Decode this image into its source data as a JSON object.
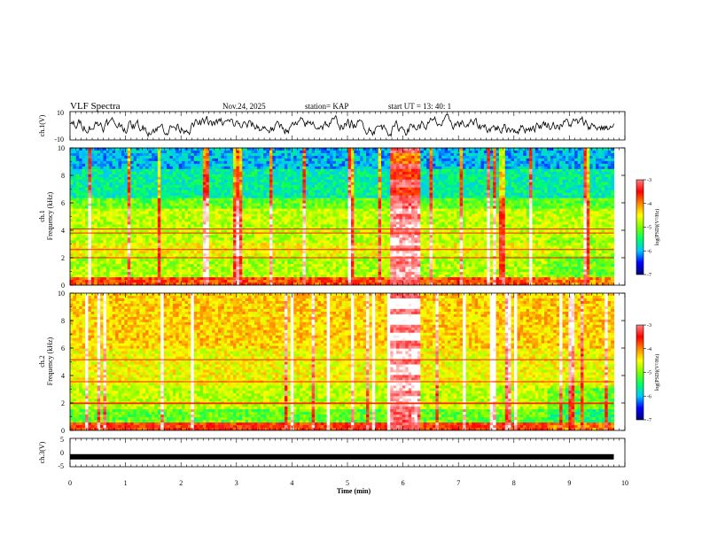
{
  "header": {
    "title": "VLF Spectra",
    "date": "Nov.24, 2025",
    "station": "station= KAP",
    "start": "start  UT  =   13: 40: 1"
  },
  "colors": {
    "spectrum_stops": [
      "#00007a",
      "#0000ff",
      "#00c8ff",
      "#00ff66",
      "#7cff00",
      "#ffff00",
      "#ff8800",
      "#ff0000",
      "#ff8080",
      "#ffffff"
    ],
    "trace": "#000000"
  },
  "chart_data": [
    {
      "type": "line",
      "id": "ch1-waveform",
      "ylabel": "ch.1(V)",
      "ylim": [
        -10,
        10
      ],
      "yticks": [
        "10",
        "-10"
      ],
      "xlim": [
        0,
        10
      ],
      "description_values": {
        "mean": 0,
        "amplitude": 4
      }
    },
    {
      "type": "heatmap",
      "id": "ch1-spectrogram",
      "ylabel_top": "ch.1",
      "ylabel": "Frequency (kHz)",
      "ylim": [
        0,
        10
      ],
      "yticks": [
        "0",
        "2",
        "4",
        "6",
        "8",
        "10"
      ],
      "xlim": [
        0,
        10
      ],
      "data_end_min": 9.8,
      "burst_interval_min": [
        5.75,
        6.3
      ],
      "colorbar": {
        "label": "log(PSD)(V²/Hz)",
        "range": [
          -7,
          -3
        ],
        "ticks": [
          "-3",
          "-4",
          "-5",
          "-6",
          "-7"
        ]
      }
    },
    {
      "type": "heatmap",
      "id": "ch2-spectrogram",
      "ylabel_top": "ch.2",
      "ylabel": "Frequency (kHz)",
      "ylim": [
        0,
        10
      ],
      "yticks": [
        "0",
        "2",
        "4",
        "6",
        "8",
        "10"
      ],
      "xlim": [
        0,
        10
      ],
      "data_end_min": 9.8,
      "burst_interval_min": [
        5.75,
        6.3
      ],
      "colorbar": {
        "label": "log(PSD)(V²/Hz)",
        "range": [
          -7,
          -3
        ],
        "ticks": [
          "-3",
          "-4",
          "-5",
          "-6",
          "-7"
        ]
      }
    },
    {
      "type": "line",
      "id": "ch3-waveform",
      "ylabel": "ch.3(V)",
      "ylim": [
        -5,
        5
      ],
      "yticks": [
        "5",
        "0",
        "-5"
      ],
      "xlim": [
        0,
        10
      ],
      "level": -1.5
    }
  ],
  "xaxis": {
    "label": "Time (min)",
    "ticks": [
      "0",
      "1",
      "2",
      "3",
      "4",
      "5",
      "6",
      "7",
      "8",
      "9",
      "10"
    ]
  }
}
